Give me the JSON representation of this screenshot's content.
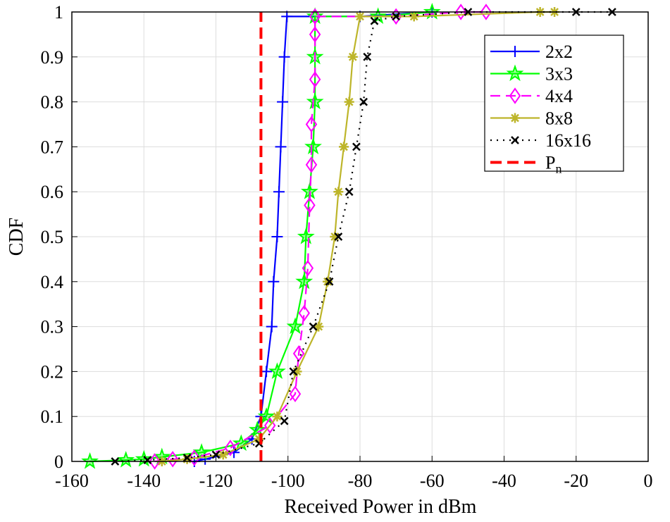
{
  "chart_data": {
    "type": "line",
    "title": "",
    "xlabel": "Received Power in dBm",
    "ylabel": "CDF",
    "xlim": [
      -160,
      0
    ],
    "ylim": [
      0,
      1
    ],
    "grid": true,
    "legend_position": "top-right",
    "xticks": [
      "-160",
      "-140",
      "-120",
      "-100",
      "-80",
      "-60",
      "-40",
      "-20",
      "0"
    ],
    "xtick_values": [
      -160,
      -140,
      -120,
      -100,
      -80,
      -60,
      -40,
      -20,
      0
    ],
    "yticks": [
      "0",
      "0.1",
      "0.2",
      "0.3",
      "0.4",
      "0.5",
      "0.6",
      "0.7",
      "0.8",
      "0.9",
      "1"
    ],
    "ytick_values": [
      0,
      0.1,
      0.2,
      0.3,
      0.4,
      0.5,
      0.6,
      0.7,
      0.8,
      0.9,
      1
    ],
    "series": [
      {
        "name": "2x2",
        "color": "#0000ff",
        "dash": "",
        "marker": "plus",
        "points": [
          [
            -126,
            0
          ],
          [
            -123,
            0.005
          ],
          [
            -115,
            0.02
          ],
          [
            -110,
            0.05
          ],
          [
            -107.5,
            0.1
          ],
          [
            -106,
            0.2
          ],
          [
            -104.5,
            0.3
          ],
          [
            -104,
            0.4
          ],
          [
            -103,
            0.5
          ],
          [
            -102.5,
            0.6
          ],
          [
            -102,
            0.7
          ],
          [
            -101.5,
            0.8
          ],
          [
            -101,
            0.9
          ],
          [
            -100.3,
            0.99
          ],
          [
            -80,
            0.99
          ],
          [
            -60,
            1
          ]
        ]
      },
      {
        "name": "3x3",
        "color": "#00ff00",
        "dash": "",
        "marker": "star",
        "points": [
          [
            -155,
            0
          ],
          [
            -145,
            0.003
          ],
          [
            -140,
            0.005
          ],
          [
            -135,
            0.01
          ],
          [
            -124,
            0.02
          ],
          [
            -113,
            0.04
          ],
          [
            -108.5,
            0.07
          ],
          [
            -106,
            0.1
          ],
          [
            -103,
            0.2
          ],
          [
            -98,
            0.3
          ],
          [
            -95.5,
            0.4
          ],
          [
            -95,
            0.5
          ],
          [
            -94,
            0.6
          ],
          [
            -93,
            0.7
          ],
          [
            -92.5,
            0.8
          ],
          [
            -92.5,
            0.9
          ],
          [
            -92.5,
            0.99
          ],
          [
            -75,
            0.99
          ],
          [
            -60,
            1
          ]
        ]
      },
      {
        "name": "4x4",
        "color": "#ff00ff",
        "dash": "14 8",
        "marker": "diamond",
        "points": [
          [
            -137,
            0
          ],
          [
            -132,
            0.005
          ],
          [
            -126,
            0.008
          ],
          [
            -116,
            0.03
          ],
          [
            -105,
            0.08
          ],
          [
            -98,
            0.15
          ],
          [
            -97,
            0.24
          ],
          [
            -95.5,
            0.33
          ],
          [
            -94.5,
            0.43
          ],
          [
            -94,
            0.57
          ],
          [
            -93.5,
            0.66
          ],
          [
            -93.5,
            0.75
          ],
          [
            -92.5,
            0.85
          ],
          [
            -92.5,
            0.95
          ],
          [
            -92.5,
            0.99
          ],
          [
            -70,
            0.99
          ],
          [
            -52,
            1
          ],
          [
            -45,
            1
          ]
        ]
      },
      {
        "name": "8x8",
        "color": "#bdb52a",
        "dash": "",
        "marker": "asterisk",
        "points": [
          [
            -135,
            0
          ],
          [
            -128,
            0.005
          ],
          [
            -118,
            0.015
          ],
          [
            -108,
            0.05
          ],
          [
            -103,
            0.1
          ],
          [
            -97.5,
            0.2
          ],
          [
            -91.5,
            0.3
          ],
          [
            -89,
            0.4
          ],
          [
            -87,
            0.5
          ],
          [
            -86,
            0.6
          ],
          [
            -84.5,
            0.7
          ],
          [
            -83,
            0.8
          ],
          [
            -82,
            0.9
          ],
          [
            -80,
            0.99
          ],
          [
            -65,
            0.99
          ],
          [
            -30,
            1
          ],
          [
            -26,
            1
          ]
        ]
      },
      {
        "name": "16x16",
        "color": "#000000",
        "dash": "2 7",
        "marker": "x",
        "points": [
          [
            -148,
            0
          ],
          [
            -139,
            0.003
          ],
          [
            -128,
            0.008
          ],
          [
            -120,
            0.015
          ],
          [
            -108,
            0.04
          ],
          [
            -101,
            0.09
          ],
          [
            -98.5,
            0.2
          ],
          [
            -93,
            0.3
          ],
          [
            -88.5,
            0.4
          ],
          [
            -86,
            0.5
          ],
          [
            -83,
            0.6
          ],
          [
            -81,
            0.7
          ],
          [
            -79,
            0.8
          ],
          [
            -78,
            0.9
          ],
          [
            -76,
            0.98
          ],
          [
            -70,
            0.99
          ],
          [
            -50,
            1
          ],
          [
            -20,
            1
          ],
          [
            -10,
            1
          ]
        ]
      },
      {
        "name": "P",
        "name_subscript": "n",
        "color": "#ff0000",
        "dash": "16 8",
        "marker": "none",
        "points": [
          [
            -107.5,
            0
          ],
          [
            -107.5,
            1
          ]
        ]
      }
    ]
  }
}
